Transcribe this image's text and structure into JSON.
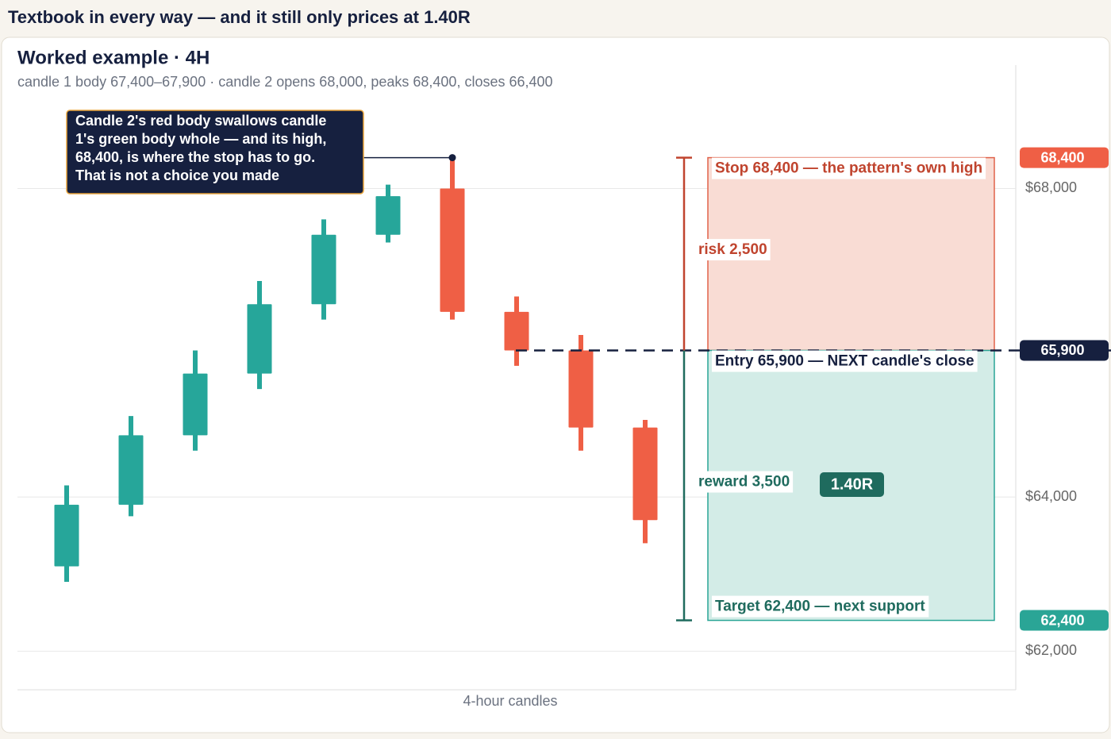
{
  "header": {
    "title": "Textbook in every way — and it still only prices at 1.40R"
  },
  "chart_data": {
    "type": "candlestick",
    "title": "Worked example · 4H",
    "subtitle": "candle 1 body 67,400–67,900 · candle 2 opens 68,000, peaks 68,400, closes 66,400",
    "x_label": "4-hour candles",
    "up_color": "#26a69a",
    "down_color": "#ef5f45",
    "open": [
      63100,
      63900,
      64800,
      65600,
      66500,
      67400,
      68000,
      66400,
      65900,
      64900
    ],
    "high": [
      64150,
      65050,
      65900,
      66800,
      67600,
      68050,
      68400,
      66600,
      66100,
      65000
    ],
    "low": [
      62900,
      63750,
      64600,
      65400,
      66300,
      67300,
      66300,
      65700,
      64600,
      63400
    ],
    "close": [
      63900,
      64800,
      65600,
      66500,
      67400,
      67900,
      66400,
      65900,
      64900,
      63700
    ],
    "ylim": [
      61500,
      69600
    ],
    "yticks": [
      {
        "value": 62000,
        "label": "$62,000"
      },
      {
        "value": 64000,
        "label": "$64,000"
      },
      {
        "value": 68000,
        "label": "$68,000"
      }
    ],
    "grid": true,
    "levels": {
      "stop": {
        "value": 68400,
        "label": "68,400",
        "text": "Stop 68,400 — the pattern's own high",
        "color": "#e0624a"
      },
      "entry": {
        "value": 65900,
        "label": "65,900",
        "text": "Entry 65,900 — NEXT candle's close",
        "color": "#16203f"
      },
      "target": {
        "value": 62400,
        "label": "62,400",
        "text": "Target 62,400 — next support",
        "color": "#2aa596"
      }
    },
    "risk": {
      "value": 2500,
      "label": "risk 2,500"
    },
    "reward": {
      "value": 3500,
      "label": "reward 3,500"
    },
    "ratio": {
      "value": 1.4,
      "label": "1.40R"
    },
    "annotation": {
      "lines": [
        "Candle 2's red body swallows candle",
        "1's green body whole — and its high,",
        "68,400, is where the stop has to go.",
        "That is not a choice you made"
      ]
    }
  }
}
